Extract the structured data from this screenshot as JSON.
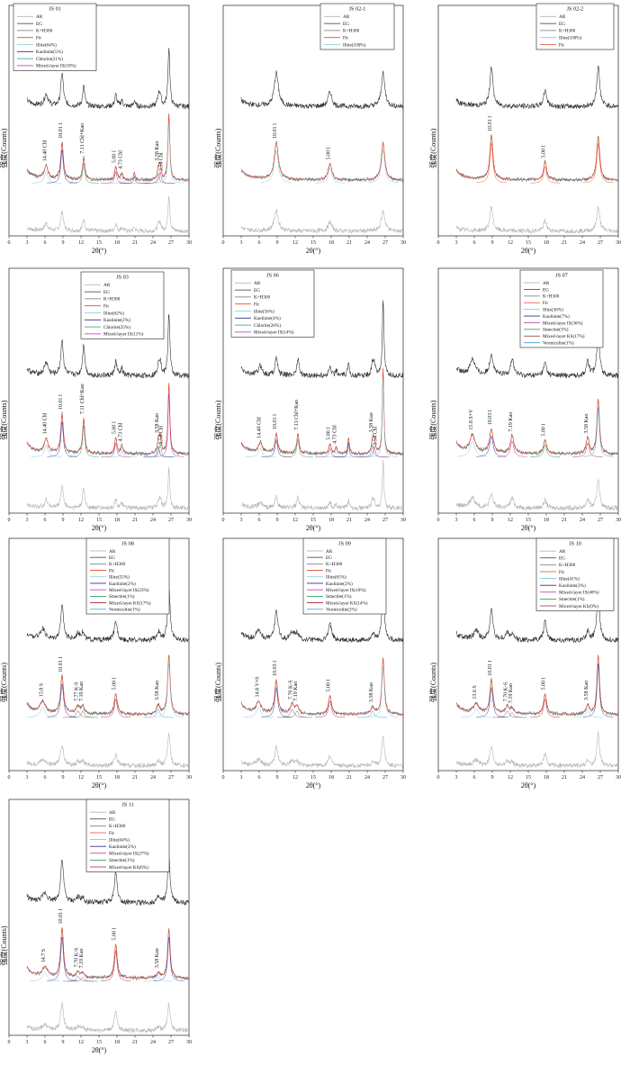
{
  "figure": {
    "xlabel": "2θ(°)",
    "ylabel": "强度(Counts)"
  },
  "chart_data": [
    {
      "type": "line",
      "title": "JS 01",
      "xlabel": "2θ(°)",
      "ylabel": "强度(Counts)",
      "xlim": [
        0,
        30
      ],
      "xticks": [
        "0",
        "3",
        "6",
        "9",
        "12",
        "15",
        "18",
        "21",
        "24",
        "27",
        "30"
      ],
      "legend": [
        "AR",
        "EG",
        "K+H300",
        "Fit",
        "Illite(64%)",
        "Kaolinite(5%)",
        "Chlorite(21%)",
        "Mixed-layer IS(10%)"
      ],
      "series_colors": [
        "#b5b5b5",
        "#333333",
        "#707070",
        "#e8482c",
        "#7fc7d9",
        "#2b2f94",
        "#2c9a7a",
        "#b72fa0"
      ],
      "peaks": [
        {
          "x": 6.2,
          "h": 0.35,
          "w": 0.35
        },
        {
          "x": 8.85,
          "h": 1.0,
          "w": 0.25
        },
        {
          "x": 12.45,
          "h": 0.6,
          "w": 0.22
        },
        {
          "x": 17.8,
          "h": 0.35,
          "w": 0.22
        },
        {
          "x": 18.8,
          "h": 0.18,
          "w": 0.2
        },
        {
          "x": 20.9,
          "h": 0.2,
          "w": 0.15
        },
        {
          "x": 24.9,
          "h": 0.3,
          "w": 0.2
        },
        {
          "x": 25.2,
          "h": 0.35,
          "w": 0.2
        },
        {
          "x": 26.65,
          "h": 1.8,
          "w": 0.18
        }
      ],
      "annotations": [
        {
          "label": "14.40 Chl",
          "x": 6.2
        },
        {
          "label": "10.01 I",
          "x": 8.85
        },
        {
          "label": "7.11 Chl+Kao",
          "x": 12.45
        },
        {
          "label": "5.00 I",
          "x": 17.8
        },
        {
          "label": "4.73 Chl",
          "x": 18.8
        },
        {
          "label": "3.58 Kao",
          "x": 24.9
        },
        {
          "label": "3.54 Chl",
          "x": 25.6
        }
      ]
    },
    {
      "type": "line",
      "title": "JS 02-1",
      "xlabel": "2θ(°)",
      "ylabel": "强度(Counts)",
      "xlim": [
        0,
        30
      ],
      "xticks": [
        "0",
        "3",
        "6",
        "9",
        "12",
        "15",
        "18",
        "21",
        "24",
        "27",
        "30"
      ],
      "legend": [
        "AR",
        "EG",
        "K+H300",
        "Fit",
        "Illite(100%)"
      ],
      "series_colors": [
        "#b5b5b5",
        "#333333",
        "#707070",
        "#e8482c",
        "#7fc7d9"
      ],
      "peaks": [
        {
          "x": 8.85,
          "h": 1.0,
          "w": 0.4
        },
        {
          "x": 17.8,
          "h": 0.45,
          "w": 0.35
        },
        {
          "x": 26.65,
          "h": 1.0,
          "w": 0.35
        }
      ],
      "annotations": [
        {
          "label": "10.01 I",
          "x": 8.85
        },
        {
          "label": "5.00 I",
          "x": 17.8
        }
      ]
    },
    {
      "type": "line",
      "title": "JS 02-2",
      "xlabel": "2θ(°)",
      "ylabel": "强度(Counts)",
      "xlim": [
        0,
        30
      ],
      "xticks": [
        "0",
        "3",
        "6",
        "9",
        "12",
        "15",
        "18",
        "21",
        "24",
        "27",
        "30"
      ],
      "legend": [
        "AR",
        "EG",
        "K+H300",
        "Illite(100%)",
        "Fit"
      ],
      "series_colors": [
        "#b5b5b5",
        "#333333",
        "#707070",
        "#7fc7d9",
        "#e8482c"
      ],
      "peaks": [
        {
          "x": 8.85,
          "h": 1.2,
          "w": 0.3
        },
        {
          "x": 17.8,
          "h": 0.5,
          "w": 0.3
        },
        {
          "x": 26.65,
          "h": 1.2,
          "w": 0.3
        }
      ],
      "annotations": [
        {
          "label": "10.01 I",
          "x": 8.85
        },
        {
          "label": "5.00 I",
          "x": 17.8
        }
      ]
    },
    {
      "type": "line",
      "title": "JS 03",
      "xlabel": "2θ(°)",
      "ylabel": "强度(Counts)",
      "xlim": [
        0,
        30
      ],
      "xticks": [
        "0",
        "3",
        "6",
        "9",
        "12",
        "15",
        "18",
        "21",
        "24",
        "27",
        "30"
      ],
      "legend": [
        "AR",
        "EG",
        "K+H300",
        "Fit",
        "Illite(62%)",
        "Kaolinite(2%)",
        "Chlorite(25%)",
        "Mixed-layer IS(11%)"
      ],
      "series_colors": [
        "#b5b5b5",
        "#333333",
        "#707070",
        "#e8482c",
        "#7fc7d9",
        "#2b2f94",
        "#2c9a7a",
        "#b72fa0"
      ],
      "peaks": [
        {
          "x": 6.2,
          "h": 0.35,
          "w": 0.35
        },
        {
          "x": 8.85,
          "h": 1.0,
          "w": 0.25
        },
        {
          "x": 12.45,
          "h": 0.9,
          "w": 0.22
        },
        {
          "x": 17.8,
          "h": 0.4,
          "w": 0.22
        },
        {
          "x": 18.8,
          "h": 0.2,
          "w": 0.2
        },
        {
          "x": 24.9,
          "h": 0.3,
          "w": 0.2
        },
        {
          "x": 25.2,
          "h": 0.4,
          "w": 0.2
        },
        {
          "x": 26.65,
          "h": 1.8,
          "w": 0.18
        }
      ],
      "annotations": [
        {
          "label": "14.40 Chl",
          "x": 6.2
        },
        {
          "label": "10.01 I",
          "x": 8.85
        },
        {
          "label": "7.11 Chl+Kao",
          "x": 12.45
        },
        {
          "label": "5.00 I",
          "x": 17.8
        },
        {
          "label": "4.73 Chl",
          "x": 18.8
        },
        {
          "label": "3.58 Kao",
          "x": 24.9
        },
        {
          "label": "3.54 Chl",
          "x": 25.6
        }
      ]
    },
    {
      "type": "line",
      "title": "JS 06",
      "xlabel": "2θ(°)",
      "ylabel": "强度(Counts)",
      "xlim": [
        0,
        30
      ],
      "xticks": [
        "0",
        "3",
        "6",
        "9",
        "12",
        "15",
        "18",
        "21",
        "24",
        "27",
        "30"
      ],
      "legend": [
        "AR",
        "EG",
        "K+H300",
        "Fit",
        "Illite(56%)",
        "Kaolinite(4%)",
        "Chlorite(26%)",
        "Mixed-layer IS(14%)"
      ],
      "series_colors": [
        "#b5b5b5",
        "#333333",
        "#707070",
        "#e8482c",
        "#7fc7d9",
        "#2b2f94",
        "#2c9a7a",
        "#b72fa0"
      ],
      "peaks": [
        {
          "x": 6.2,
          "h": 0.25,
          "w": 0.35
        },
        {
          "x": 8.85,
          "h": 0.5,
          "w": 0.25
        },
        {
          "x": 12.45,
          "h": 0.5,
          "w": 0.22
        },
        {
          "x": 17.8,
          "h": 0.25,
          "w": 0.22
        },
        {
          "x": 18.8,
          "h": 0.15,
          "w": 0.2
        },
        {
          "x": 20.9,
          "h": 0.4,
          "w": 0.15
        },
        {
          "x": 24.9,
          "h": 0.35,
          "w": 0.2
        },
        {
          "x": 25.2,
          "h": 0.3,
          "w": 0.2
        },
        {
          "x": 26.65,
          "h": 2.2,
          "w": 0.15
        }
      ],
      "annotations": [
        {
          "label": "14.40 Chl",
          "x": 6.2
        },
        {
          "label": "10.01 I",
          "x": 8.85
        },
        {
          "label": "7.11 Chl+Kao",
          "x": 12.45
        },
        {
          "label": "5.00 I",
          "x": 17.8
        },
        {
          "label": "4.73 Chl",
          "x": 18.8
        },
        {
          "label": "3.58 Kao",
          "x": 24.9
        },
        {
          "label": "3.54 Chl",
          "x": 25.6
        }
      ]
    },
    {
      "type": "line",
      "title": "JS 07",
      "xlabel": "2θ(°)",
      "ylabel": "强度(Counts)",
      "xlim": [
        0,
        30
      ],
      "xticks": [
        "0",
        "3",
        "6",
        "9",
        "12",
        "15",
        "18",
        "21",
        "24",
        "27",
        "30"
      ],
      "legend": [
        "AR",
        "EG",
        "K+H300",
        "Fit",
        "Illite(36%)",
        "Kaolinite(7%)",
        "Mixed-layer IS(36%)",
        "Smectite(3%)",
        "Mixed-layer KS(17%)",
        "Vermiculite(1%)"
      ],
      "series_colors": [
        "#b5b5b5",
        "#333333",
        "#707070",
        "#e8482c",
        "#7fc7d9",
        "#2b2f94",
        "#b72fa0",
        "#1a8f4a",
        "#a02040",
        "#2ea0d8"
      ],
      "peaks": [
        {
          "x": 5.7,
          "h": 0.45,
          "w": 0.5
        },
        {
          "x": 8.85,
          "h": 0.6,
          "w": 0.35
        },
        {
          "x": 12.3,
          "h": 0.45,
          "w": 0.35
        },
        {
          "x": 17.8,
          "h": 0.35,
          "w": 0.3
        },
        {
          "x": 24.9,
          "h": 0.4,
          "w": 0.3
        },
        {
          "x": 26.65,
          "h": 1.4,
          "w": 0.25
        }
      ],
      "annotations": [
        {
          "label": "15.8 S+V",
          "x": 5.7
        },
        {
          "label": "10.03 I",
          "x": 8.85
        },
        {
          "label": "7.19 Kao",
          "x": 12.3
        },
        {
          "label": "5.00 I",
          "x": 17.8
        },
        {
          "label": "3.58 Kao",
          "x": 24.9
        }
      ]
    },
    {
      "type": "line",
      "title": "JS 08",
      "xlabel": "2θ(°)",
      "ylabel": "强度(Counts)",
      "xlim": [
        0,
        30
      ],
      "xticks": [
        "0",
        "3",
        "6",
        "9",
        "12",
        "15",
        "18",
        "21",
        "24",
        "27",
        "30"
      ],
      "legend": [
        "AR",
        "EG",
        "K+H300",
        "Fit",
        "Illite(55%)",
        "Kaolinite(2%)",
        "Mixed-layer IS(23%)",
        "Smectite(1%)",
        "Mixed-layer KS(17%)",
        "Vermiculite(1%)"
      ],
      "series_colors": [
        "#b5b5b5",
        "#333333",
        "#707070",
        "#e8482c",
        "#7fc7d9",
        "#2b2f94",
        "#b72fa0",
        "#1a8f4a",
        "#a02040",
        "#2ea0d8"
      ],
      "peaks": [
        {
          "x": 5.6,
          "h": 0.3,
          "w": 0.5
        },
        {
          "x": 8.85,
          "h": 1.0,
          "w": 0.3
        },
        {
          "x": 11.5,
          "h": 0.2,
          "w": 0.35
        },
        {
          "x": 12.3,
          "h": 0.2,
          "w": 0.3
        },
        {
          "x": 17.8,
          "h": 0.55,
          "w": 0.3
        },
        {
          "x": 24.9,
          "h": 0.25,
          "w": 0.3
        },
        {
          "x": 26.65,
          "h": 1.6,
          "w": 0.25
        }
      ],
      "annotations": [
        {
          "label": "15.8 S",
          "x": 5.6
        },
        {
          "label": "10.01 I",
          "x": 8.85
        },
        {
          "label": "7.77 K-S",
          "x": 11.5
        },
        {
          "label": "7.19 Kao",
          "x": 12.3
        },
        {
          "label": "5.00 I",
          "x": 17.8
        },
        {
          "label": "3.58 Kao",
          "x": 24.9
        }
      ]
    },
    {
      "type": "line",
      "title": "JS 09",
      "xlabel": "2θ(°)",
      "ylabel": "强度(Counts)",
      "xlim": [
        0,
        30
      ],
      "xticks": [
        "0",
        "3",
        "6",
        "9",
        "12",
        "15",
        "18",
        "21",
        "24",
        "27",
        "30"
      ],
      "legend": [
        "AR",
        "EG",
        "K+H300",
        "Fit",
        "Illite(65%)",
        "Kaolinite(2%)",
        "Mixed-layer IS(18%)",
        "Smectite(1%)",
        "Mixed-layer KS(14%)",
        "Vermiculite(2%)"
      ],
      "series_colors": [
        "#b5b5b5",
        "#333333",
        "#707070",
        "#e8482c",
        "#7fc7d9",
        "#2b2f94",
        "#b72fa0",
        "#1a8f4a",
        "#a02040",
        "#2ea0d8"
      ],
      "peaks": [
        {
          "x": 5.9,
          "h": 0.3,
          "w": 0.45
        },
        {
          "x": 8.85,
          "h": 0.9,
          "w": 0.3
        },
        {
          "x": 11.5,
          "h": 0.25,
          "w": 0.35
        },
        {
          "x": 12.3,
          "h": 0.2,
          "w": 0.3
        },
        {
          "x": 17.8,
          "h": 0.5,
          "w": 0.3
        },
        {
          "x": 24.9,
          "h": 0.2,
          "w": 0.3
        },
        {
          "x": 26.65,
          "h": 1.5,
          "w": 0.25
        }
      ],
      "annotations": [
        {
          "label": "14.8 V+S",
          "x": 5.9
        },
        {
          "label": "10.03 I",
          "x": 8.85
        },
        {
          "label": "7.70 K-S",
          "x": 11.5
        },
        {
          "label": "7.19 Kao",
          "x": 12.3
        },
        {
          "label": "5.00 I",
          "x": 17.8
        },
        {
          "label": "3.58 Kao",
          "x": 24.9
        }
      ]
    },
    {
      "type": "line",
      "title": "JS 10",
      "xlabel": "2θ(°)",
      "ylabel": "强度(Counts)",
      "xlim": [
        0,
        30
      ],
      "xticks": [
        "0",
        "3",
        "6",
        "9",
        "12",
        "15",
        "18",
        "21",
        "24",
        "27",
        "30"
      ],
      "legend": [
        "AR",
        "EG",
        "K+H300",
        "Fit",
        "Illite(41%)",
        "Kaolinite(3%)",
        "Mixed-layer IS(40%)",
        "Smectite(1%)",
        "Mixed-layer KS(9%)"
      ],
      "series_colors": [
        "#b5b5b5",
        "#333333",
        "#707070",
        "#e8482c",
        "#7fc7d9",
        "#2b2f94",
        "#b72fa0",
        "#1a8f4a",
        "#a02040"
      ],
      "peaks": [
        {
          "x": 6.3,
          "h": 0.25,
          "w": 0.5
        },
        {
          "x": 8.85,
          "h": 0.9,
          "w": 0.3
        },
        {
          "x": 11.5,
          "h": 0.2,
          "w": 0.35
        },
        {
          "x": 12.3,
          "h": 0.15,
          "w": 0.3
        },
        {
          "x": 17.8,
          "h": 0.55,
          "w": 0.3
        },
        {
          "x": 24.9,
          "h": 0.25,
          "w": 0.3
        },
        {
          "x": 26.65,
          "h": 1.6,
          "w": 0.25
        }
      ],
      "annotations": [
        {
          "label": "13.6 S",
          "x": 6.3
        },
        {
          "label": "10.01 I",
          "x": 8.85
        },
        {
          "label": "7.70 K-S",
          "x": 11.5
        },
        {
          "label": "7.19 Kao",
          "x": 12.3
        },
        {
          "label": "5.00 I",
          "x": 17.8
        },
        {
          "label": "3.58 Kao",
          "x": 24.9
        }
      ]
    },
    {
      "type": "line",
      "title": "JS 11",
      "xlabel": "2θ(°)",
      "ylabel": "强度(Counts)",
      "xlim": [
        0,
        30
      ],
      "xticks": [
        "0",
        "3",
        "6",
        "9",
        "12",
        "15",
        "18",
        "21",
        "24",
        "27",
        "30"
      ],
      "legend": [
        "AR",
        "EG",
        "K+H300",
        "Fit",
        "Illite(64%)",
        "Kaolinite(2%)",
        "Mixed-layer IS(27%)",
        "Smectite(1%)",
        "Mixed-layer KS(6%)"
      ],
      "series_colors": [
        "#b5b5b5",
        "#333333",
        "#707070",
        "#e8482c",
        "#7fc7d9",
        "#2b2f94",
        "#b72fa0",
        "#1a8f4a",
        "#a02040"
      ],
      "peaks": [
        {
          "x": 6.0,
          "h": 0.25,
          "w": 0.5
        },
        {
          "x": 8.85,
          "h": 1.3,
          "w": 0.28
        },
        {
          "x": 11.5,
          "h": 0.15,
          "w": 0.35
        },
        {
          "x": 12.3,
          "h": 0.12,
          "w": 0.3
        },
        {
          "x": 17.8,
          "h": 0.9,
          "w": 0.28
        },
        {
          "x": 24.9,
          "h": 0.15,
          "w": 0.3
        },
        {
          "x": 26.65,
          "h": 1.3,
          "w": 0.25
        }
      ],
      "annotations": [
        {
          "label": "14.7 S",
          "x": 6.0
        },
        {
          "label": "10.01 I",
          "x": 8.85
        },
        {
          "label": "7.70 K-S",
          "x": 11.5
        },
        {
          "label": "7.19 Kao",
          "x": 12.3
        },
        {
          "label": "5.00 I",
          "x": 17.8
        },
        {
          "label": "3.58 Kao",
          "x": 24.9
        }
      ]
    }
  ]
}
